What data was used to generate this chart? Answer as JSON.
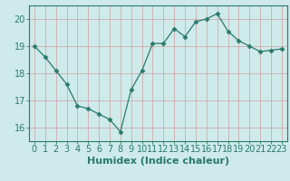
{
  "x": [
    0,
    1,
    2,
    3,
    4,
    5,
    6,
    7,
    8,
    9,
    10,
    11,
    12,
    13,
    14,
    15,
    16,
    17,
    18,
    19,
    20,
    21,
    22,
    23
  ],
  "y": [
    19.0,
    18.6,
    18.1,
    17.6,
    16.8,
    16.7,
    16.5,
    16.3,
    15.85,
    17.4,
    18.1,
    19.1,
    19.1,
    19.65,
    19.35,
    19.9,
    20.0,
    20.2,
    19.55,
    19.2,
    19.0,
    18.8,
    18.85,
    18.9
  ],
  "line_color": "#2a7a6a",
  "marker": "D",
  "marker_size": 2.5,
  "bg_color": "#ceeaea",
  "grid_color": "#b8d4d4",
  "xlabel": "Humidex (Indice chaleur)",
  "xlim": [
    -0.5,
    23.5
  ],
  "ylim": [
    15.5,
    20.5
  ],
  "yticks": [
    16,
    17,
    18,
    19,
    20
  ],
  "xticks": [
    0,
    1,
    2,
    3,
    4,
    5,
    6,
    7,
    8,
    9,
    10,
    11,
    12,
    13,
    14,
    15,
    16,
    17,
    18,
    19,
    20,
    21,
    22,
    23
  ],
  "tick_color": "#2a7a6a",
  "label_color": "#2a7a6a",
  "axis_color": "#2a7a6a",
  "font_size": 7.0,
  "xlabel_fontsize": 8.0
}
